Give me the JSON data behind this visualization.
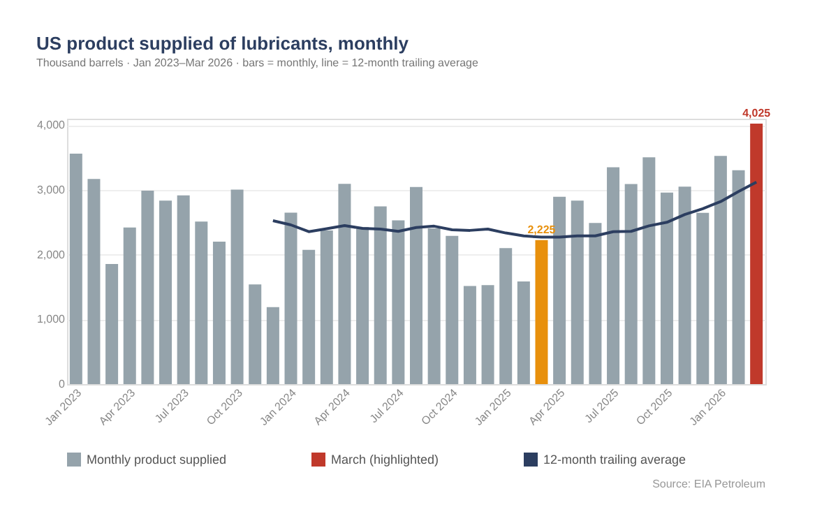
{
  "chart_data": {
    "type": "bar",
    "title": "US product supplied of lubricants, monthly",
    "subtitle": "Thousand barrels · Jan 2023–Mar 2026 · bars = monthly, line = 12-month trailing average",
    "categories": [
      "Jan 2023",
      null,
      null,
      "Apr 2023",
      null,
      null,
      "Jul 2023",
      null,
      null,
      "Oct 2023",
      null,
      null,
      "Jan 2024",
      null,
      null,
      "Apr 2024",
      null,
      null,
      "Jul 2024",
      null,
      null,
      "Oct 2024",
      null,
      null,
      "Jan 2025",
      null,
      null,
      "Apr 2025",
      null,
      null,
      "Jul 2025",
      null,
      null,
      "Oct 2025",
      null,
      null,
      "Jan 2026",
      null,
      null
    ],
    "series": [
      {
        "name": "Monthly product supplied",
        "color": "#95a3ab",
        "colors": [
          "#95a3ab",
          "#95a3ab",
          "#95a3ab",
          "#95a3ab",
          "#95a3ab",
          "#95a3ab",
          "#95a3ab",
          "#95a3ab",
          "#95a3ab",
          "#95a3ab",
          "#95a3ab",
          "#95a3ab",
          "#95a3ab",
          "#95a3ab",
          "#95a3ab",
          "#95a3ab",
          "#95a3ab",
          "#95a3ab",
          "#95a3ab",
          "#95a3ab",
          "#95a3ab",
          "#95a3ab",
          "#95a3ab",
          "#95a3ab",
          "#95a3ab",
          "#95a3ab",
          "#e8900c",
          "#95a3ab",
          "#95a3ab",
          "#95a3ab",
          "#95a3ab",
          "#95a3ab",
          "#95a3ab",
          "#95a3ab",
          "#95a3ab",
          "#95a3ab",
          "#95a3ab",
          "#95a3ab",
          "#95a3ab"
        ],
        "values": [
          3560,
          3170,
          1855,
          2420,
          2990,
          2835,
          2915,
          2510,
          2200,
          3005,
          1540,
          1190,
          2650,
          2075,
          2375,
          3095,
          2425,
          2745,
          2530,
          3045,
          2405,
          2290,
          1515,
          1530,
          2100,
          1585,
          2225,
          2895,
          2835,
          2490,
          3350,
          3090,
          3505,
          2960,
          3050,
          2645,
          3525,
          3305,
          null
        ],
        "value_labels": [
          null,
          null,
          null,
          null,
          null,
          null,
          null,
          null,
          null,
          null,
          null,
          null,
          null,
          null,
          null,
          null,
          null,
          null,
          null,
          null,
          null,
          null,
          null,
          null,
          null,
          null,
          "2,225",
          null,
          null,
          null,
          null,
          null,
          null,
          null,
          null,
          null,
          null,
          null,
          null
        ]
      },
      {
        "name": "March (highlighted)",
        "color": "#c0392b",
        "values": [
          null,
          null,
          null,
          null,
          null,
          null,
          null,
          null,
          null,
          null,
          null,
          null,
          null,
          null,
          null,
          null,
          null,
          null,
          null,
          null,
          null,
          null,
          null,
          null,
          null,
          null,
          null,
          null,
          null,
          null,
          null,
          null,
          null,
          null,
          null,
          null,
          null,
          null,
          4025
        ],
        "value_labels": [
          null,
          null,
          null,
          null,
          null,
          null,
          null,
          null,
          null,
          null,
          null,
          null,
          null,
          null,
          null,
          null,
          null,
          null,
          null,
          null,
          null,
          null,
          null,
          null,
          null,
          null,
          null,
          null,
          null,
          null,
          null,
          null,
          null,
          null,
          null,
          null,
          null,
          null,
          "4,025"
        ]
      },
      {
        "name": "12-month trailing average",
        "type": "line",
        "color": "#2c3e60",
        "values": [
          null,
          null,
          null,
          null,
          null,
          null,
          null,
          null,
          null,
          null,
          null,
          2525,
          2460,
          2355,
          2400,
          2450,
          2405,
          2395,
          2360,
          2420,
          2440,
          2385,
          2375,
          2395,
          2335,
          2290,
          2270,
          2270,
          2290,
          2290,
          2355,
          2360,
          2445,
          2500,
          2620,
          2710,
          2820,
          2975,
          3120
        ]
      }
    ],
    "ylim": [
      0,
      4100
    ],
    "yticks": [
      0,
      {
        "value": 1000,
        "label": "1,000"
      },
      {
        "value": 2000,
        "label": "2,000"
      },
      {
        "value": 3000,
        "label": "3,000"
      },
      {
        "value": 4000,
        "label": "4,000"
      }
    ],
    "grid": "y",
    "legend": "bottom",
    "marker": "none",
    "line_style": "solid",
    "annotations": [
      "Source: EIA Petroleum"
    ]
  }
}
